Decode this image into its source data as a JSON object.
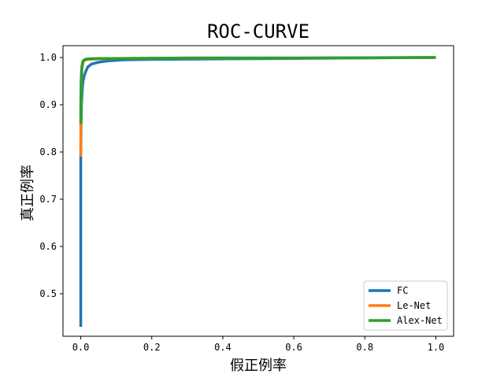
{
  "chart_data": {
    "type": "line",
    "title": "ROC-CURVE",
    "xlabel": "假正例率",
    "ylabel": "真正例率",
    "xlim": [
      -0.05,
      1.05
    ],
    "ylim": [
      0.41,
      1.025
    ],
    "x_ticks": [
      0.0,
      0.2,
      0.4,
      0.6,
      0.8,
      1.0
    ],
    "x_tick_labels": [
      "0.0",
      "0.2",
      "0.4",
      "0.6",
      "0.8",
      "1.0"
    ],
    "y_ticks": [
      0.5,
      0.6,
      0.7,
      0.8,
      0.9,
      1.0
    ],
    "y_tick_labels": [
      "0.5",
      "0.6",
      "0.7",
      "0.8",
      "0.9",
      "1.0"
    ],
    "grid": false,
    "legend_position": "lower-right",
    "series": [
      {
        "name": "FC",
        "color": "#1f77b4",
        "x": [
          0.0,
          0.0,
          0.001,
          0.002,
          0.004,
          0.006,
          0.01,
          0.015,
          0.02,
          0.03,
          0.05,
          0.08,
          0.12,
          0.2,
          0.4,
          0.6,
          0.8,
          1.0
        ],
        "y": [
          0.43,
          0.79,
          0.86,
          0.9,
          0.93,
          0.948,
          0.962,
          0.972,
          0.98,
          0.986,
          0.99,
          0.993,
          0.995,
          0.996,
          0.997,
          0.998,
          0.999,
          1.0
        ]
      },
      {
        "name": "Le-Net",
        "color": "#ff7f0e",
        "x": [
          0.0,
          0.0,
          0.001,
          0.002,
          0.004,
          0.007,
          0.01,
          0.02,
          0.05,
          0.1,
          0.3,
          0.6,
          1.0
        ],
        "y": [
          0.79,
          0.86,
          0.92,
          0.96,
          0.98,
          0.99,
          0.994,
          0.996,
          0.997,
          0.998,
          0.999,
          0.999,
          1.0
        ]
      },
      {
        "name": "Alex-Net",
        "color": "#2ca02c",
        "x": [
          0.0,
          0.0,
          0.001,
          0.002,
          0.003,
          0.005,
          0.008,
          0.012,
          0.02,
          0.05,
          0.1,
          0.3,
          0.6,
          1.0
        ],
        "y": [
          0.86,
          0.9,
          0.95,
          0.97,
          0.98,
          0.99,
          0.994,
          0.996,
          0.997,
          0.998,
          0.998,
          0.999,
          0.999,
          1.0
        ]
      }
    ]
  }
}
